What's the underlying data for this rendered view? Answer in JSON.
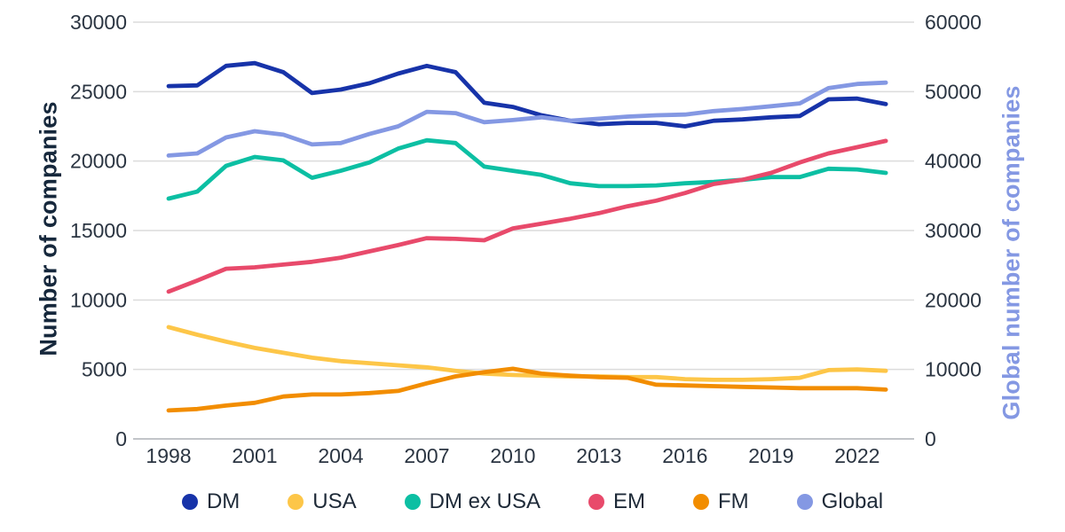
{
  "chart_data": {
    "type": "line",
    "title": "",
    "x": [
      1998,
      1999,
      2000,
      2001,
      2002,
      2003,
      2004,
      2005,
      2006,
      2007,
      2008,
      2009,
      2010,
      2011,
      2012,
      2013,
      2014,
      2015,
      2016,
      2017,
      2018,
      2019,
      2020,
      2021,
      2022,
      2023
    ],
    "x_tick_labels": [
      "1998",
      "2001",
      "2004",
      "2007",
      "2010",
      "2013",
      "2016",
      "2019",
      "2022"
    ],
    "grid": true,
    "legend_position": "bottom",
    "axes": {
      "left": {
        "label": "Number of companies",
        "min": 0,
        "max": 30000,
        "ticks": [
          "0",
          "5000",
          "10000",
          "15000",
          "20000",
          "25000",
          "30000"
        ],
        "tick_values": [
          0,
          5000,
          10000,
          15000,
          20000,
          25000,
          30000
        ]
      },
      "right": {
        "label": "Global number of companies",
        "min": 0,
        "max": 60000,
        "ticks": [
          "0",
          "10000",
          "20000",
          "30000",
          "40000",
          "50000",
          "60000"
        ],
        "tick_values": [
          0,
          10000,
          20000,
          30000,
          40000,
          50000,
          60000
        ]
      }
    },
    "series": [
      {
        "name": "DM",
        "axis": "left",
        "color": "#1733a9",
        "values": [
          25400,
          25450,
          26850,
          27050,
          26400,
          24900,
          25150,
          25600,
          26300,
          26850,
          26400,
          24200,
          23900,
          23300,
          22900,
          22650,
          22750,
          22750,
          22500,
          22900,
          23000,
          23150,
          23250,
          24450,
          24500,
          24100
        ]
      },
      {
        "name": "USA",
        "axis": "left",
        "color": "#fdc648",
        "values": [
          8050,
          7500,
          7000,
          6550,
          6200,
          5850,
          5600,
          5450,
          5300,
          5150,
          4900,
          4700,
          4600,
          4550,
          4500,
          4500,
          4450,
          4450,
          4300,
          4250,
          4250,
          4300,
          4400,
          4950,
          5000,
          4900
        ]
      },
      {
        "name": "DM ex USA",
        "axis": "left",
        "color": "#0cbfa3",
        "values": [
          17300,
          17800,
          19650,
          20300,
          20050,
          18800,
          19300,
          19900,
          20900,
          21500,
          21300,
          19600,
          19300,
          19000,
          18400,
          18200,
          18200,
          18250,
          18400,
          18500,
          18650,
          18850,
          18850,
          19450,
          19400,
          19150
        ]
      },
      {
        "name": "EM",
        "axis": "left",
        "color": "#e84a6b",
        "values": [
          10600,
          11400,
          12250,
          12350,
          12550,
          12750,
          13050,
          13500,
          13950,
          14450,
          14400,
          14300,
          15150,
          15500,
          15850,
          16250,
          16750,
          17150,
          17700,
          18350,
          18650,
          19150,
          19900,
          20550,
          21000,
          21450
        ]
      },
      {
        "name": "FM",
        "axis": "left",
        "color": "#f28d00",
        "values": [
          2050,
          2150,
          2400,
          2600,
          3050,
          3200,
          3200,
          3300,
          3450,
          4000,
          4500,
          4800,
          5050,
          4700,
          4550,
          4450,
          4400,
          3900,
          3850,
          3800,
          3750,
          3700,
          3650,
          3650,
          3650,
          3550
        ]
      },
      {
        "name": "Global",
        "axis": "right",
        "color": "#8498e3",
        "values": [
          40800,
          41100,
          43400,
          44300,
          43800,
          42400,
          42600,
          43900,
          45000,
          47100,
          46900,
          45600,
          45900,
          46300,
          45800,
          46100,
          46400,
          46600,
          46700,
          47200,
          47500,
          47900,
          48300,
          50500,
          51100,
          51300
        ]
      }
    ]
  },
  "colors": {
    "background": "#ffffff",
    "grid": "#dcdcdc",
    "zero_line": "#c2c5c9",
    "tick_text": "#2b3542",
    "left_title": "#16283c",
    "right_title": "#8498e3"
  }
}
